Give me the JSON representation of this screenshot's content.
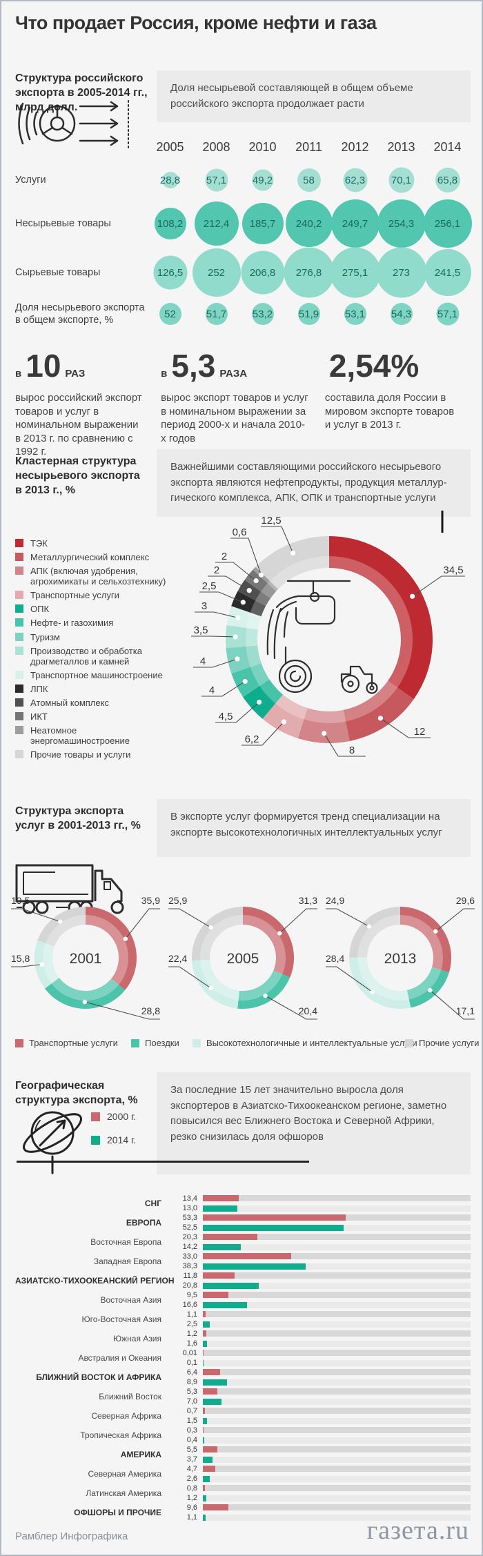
{
  "page": {
    "title": "Что продает Россия, кроме нефти и газа"
  },
  "stats": [
    {
      "small1": "в",
      "big": "10",
      "small2": "РАЗ",
      "text": "вырос российский экспорт товаров и услуг в номиналь­ном выражении в 2013 г. по сравнению с 1992 г."
    },
    {
      "small1": "в",
      "big": "5,3",
      "small2": "РАЗА",
      "text": "вырос экспорт товаров и услуг в номинальном выражении за период 2000-х и начала 2010-х годов"
    },
    {
      "small1": "",
      "big": "2,54%",
      "small2": "",
      "text": "составила доля России в мировом экспорте товаров и услуг в 2013 г."
    }
  ],
  "chart_data": [
    {
      "id": "export_structure",
      "type": "table",
      "title": "Структура российского экспорта в 2005-2014 гг., млрд долл.",
      "note": "Доля несырьевой составляющей в общем объеме российского экспорта продолжает расти",
      "categories": [
        "2005",
        "2008",
        "2010",
        "2011",
        "2012",
        "2013",
        "2014"
      ],
      "series": [
        {
          "name": "Услуги",
          "color": "#a5dfd3",
          "values": [
            28.8,
            57.1,
            49.2,
            58,
            62.3,
            70.1,
            65.8
          ],
          "labels": [
            "28,8",
            "57,1",
            "49,2",
            "58",
            "62,3",
            "70,1",
            "65,8"
          ]
        },
        {
          "name": "Несырьевые товары",
          "color": "#52c6ae",
          "values": [
            108.2,
            212.4,
            185.7,
            240.2,
            249.7,
            254.3,
            256.1
          ],
          "labels": [
            "108,2",
            "212,4",
            "185,7",
            "240,2",
            "249,7",
            "254,3",
            "256,1"
          ]
        },
        {
          "name": "Сырьевые товары",
          "color": "#90dbcb",
          "values": [
            126.5,
            252,
            206.8,
            276.8,
            275.1,
            273,
            241.5
          ],
          "labels": [
            "126,5",
            "252",
            "206,8",
            "276,8",
            "275,1",
            "273",
            "241,5"
          ]
        },
        {
          "name": "Доля несырьевого экспорта в общем экспорте, %",
          "color": "#80d4c3",
          "values": [
            52,
            51.7,
            53.2,
            51.9,
            53.1,
            54.3,
            57.1
          ],
          "labels": [
            "52",
            "51,7",
            "53,2",
            "51,9",
            "53,1",
            "54,3",
            "57,1"
          ]
        }
      ]
    },
    {
      "id": "cluster_structure",
      "type": "pie",
      "title": "Кластерная структура несырьевого экспорта в 2013 г., %",
      "note": "Важнейшими составляющими российского несырьевого экспорта являются нефтепродукты, продукция металлур­гического комплекса, АПК, ОПК и транспортные услуги",
      "slices": [
        {
          "label": "ТЭК",
          "value": 34.5,
          "display": "34,5",
          "color": "#bd2a32"
        },
        {
          "label": "Металлургический комплекс",
          "value": 12,
          "display": "12",
          "color": "#c6585e"
        },
        {
          "label": "АПК (включая удобрения, агрохимикаты и сельхозтехнику)",
          "value": 8,
          "display": "8",
          "color": "#d28589"
        },
        {
          "label": "Транспортные услуги",
          "value": 6.2,
          "display": "6,2",
          "color": "#e2acae"
        },
        {
          "label": "ОПК",
          "value": 4.5,
          "display": "4,5",
          "color": "#0cae8e"
        },
        {
          "label": "Нефте- и газохимия",
          "value": 4,
          "display": "4",
          "color": "#4ac3ab"
        },
        {
          "label": "Туризм",
          "value": 4,
          "display": "4",
          "color": "#7dd2c1"
        },
        {
          "label": "Производство и обработка драгметаллов и камней",
          "value": 3.5,
          "display": "3,5",
          "color": "#aae1d5"
        },
        {
          "label": "Транспортное машиностроение",
          "value": 3,
          "display": "3",
          "color": "#d8f1ea"
        },
        {
          "label": "ЛПК",
          "value": 2.5,
          "display": "2,5",
          "color": "#2b2b2b"
        },
        {
          "label": "Атомный комплекс",
          "value": 2,
          "display": "2",
          "color": "#505050"
        },
        {
          "label": "ИКТ",
          "value": 2,
          "display": "2",
          "color": "#767676"
        },
        {
          "label": "Неатомное энергомашиностроение",
          "value": 0.6,
          "display": "0,6",
          "color": "#9d9d9d"
        },
        {
          "label": "Прочие товары и услуги",
          "value": 12.5,
          "display": "12,5",
          "color": "#d6d6d6"
        }
      ]
    },
    {
      "id": "services_structure",
      "type": "pie",
      "title": "Структура экспорта услуг в 2001-2013 гг., %",
      "note": "В экспорте услуг формируется тренд специализации на экспорте высокотехнологичных интеллектуальных услуг",
      "legend": [
        {
          "label": "Транспортные услуги",
          "color": "#c9696d"
        },
        {
          "label": "Поездки",
          "color": "#4cc3ab"
        },
        {
          "label": "Высокотехнологичные и интеллектуальные услуги",
          "color": "#cfeee7"
        },
        {
          "label": "Прочие услуги",
          "color": "#d5d5d5"
        }
      ],
      "donuts": [
        {
          "year": "2001",
          "values": [
            35.9,
            28.8,
            15.8,
            19.5
          ],
          "labels": [
            "35,9",
            "28,8",
            "15,8",
            "19,5"
          ]
        },
        {
          "year": "2005",
          "values": [
            31.3,
            20.4,
            22.4,
            25.9
          ],
          "labels": [
            "31,3",
            "20,4",
            "22,4",
            "25,9"
          ]
        },
        {
          "year": "2013",
          "values": [
            29.6,
            17.1,
            28.4,
            24.9
          ],
          "labels": [
            "29,6",
            "17,1",
            "28,4",
            "24,9"
          ]
        }
      ]
    },
    {
      "id": "geo_structure",
      "type": "bar",
      "title": "Географическая структура экспорта, %",
      "note": "За последние 15 лет значительно выросла доля экспортеров в Азиатско-Тихоокеанском регионе, заметно повысился вес Ближнего Востока и Северной Африки, резко снизилась доля офшоров",
      "legend": [
        {
          "label": "2000 г.",
          "color": "#c9696d"
        },
        {
          "label": "2014 г.",
          "color": "#10ac8d"
        }
      ],
      "xlim": [
        0,
        100
      ],
      "regions": [
        {
          "name": "СНГ",
          "major": true,
          "values": [
            13.4,
            13.0
          ],
          "labels": [
            "13,4",
            "13,0"
          ]
        },
        {
          "name": "ЕВРОПА",
          "major": true,
          "values": [
            53.3,
            52.5
          ],
          "labels": [
            "53,3",
            "52,5"
          ]
        },
        {
          "name": "Восточная Европа",
          "major": false,
          "values": [
            20.3,
            14.2
          ],
          "labels": [
            "20,3",
            "14,2"
          ]
        },
        {
          "name": "Западная Европа",
          "major": false,
          "values": [
            33.0,
            38.3
          ],
          "labels": [
            "33,0",
            "38,3"
          ]
        },
        {
          "name": "АЗИАТСКО-ТИХООКЕАНСКИЙ РЕГИОН",
          "major": true,
          "values": [
            11.8,
            20.8
          ],
          "labels": [
            "11,8",
            "20,8"
          ]
        },
        {
          "name": "Восточная Азия",
          "major": false,
          "values": [
            9.5,
            16.6
          ],
          "labels": [
            "9,5",
            "16,6"
          ]
        },
        {
          "name": "Юго-Восточная Азия",
          "major": false,
          "values": [
            1.1,
            2.5
          ],
          "labels": [
            "1,1",
            "2,5"
          ]
        },
        {
          "name": "Южная Азия",
          "major": false,
          "values": [
            1.2,
            1.6
          ],
          "labels": [
            "1,2",
            "1,6"
          ]
        },
        {
          "name": "Австралия и Океания",
          "major": false,
          "values": [
            0.01,
            0.1
          ],
          "labels": [
            "0,01",
            "0,1"
          ]
        },
        {
          "name": "БЛИЖНИЙ ВОСТОК И АФРИКА",
          "major": true,
          "values": [
            6.4,
            8.9
          ],
          "labels": [
            "6,4",
            "8,9"
          ]
        },
        {
          "name": "Ближний Восток",
          "major": false,
          "values": [
            5.3,
            7.0
          ],
          "labels": [
            "5,3",
            "7,0"
          ]
        },
        {
          "name": "Северная Африка",
          "major": false,
          "values": [
            0.7,
            1.5
          ],
          "labels": [
            "0,7",
            "1,5"
          ]
        },
        {
          "name": "Тропическая Африка",
          "major": false,
          "values": [
            0.3,
            0.4
          ],
          "labels": [
            "0,3",
            "0,4"
          ]
        },
        {
          "name": "АМЕРИКА",
          "major": true,
          "values": [
            5.5,
            3.7
          ],
          "labels": [
            "5,5",
            "3,7"
          ]
        },
        {
          "name": "Северная Америка",
          "major": false,
          "values": [
            4.7,
            2.6
          ],
          "labels": [
            "4,7",
            "2,6"
          ]
        },
        {
          "name": "Латинская Америка",
          "major": false,
          "values": [
            0.8,
            1.2
          ],
          "labels": [
            "0,8",
            "1,2"
          ]
        },
        {
          "name": "ОФШОРЫ И ПРОЧИЕ",
          "major": true,
          "values": [
            9.6,
            1.1
          ],
          "labels": [
            "9,6",
            "1,1"
          ]
        }
      ]
    }
  ],
  "footer": {
    "credit": "Рамблер Инфографика",
    "logo": "газета.ru"
  }
}
